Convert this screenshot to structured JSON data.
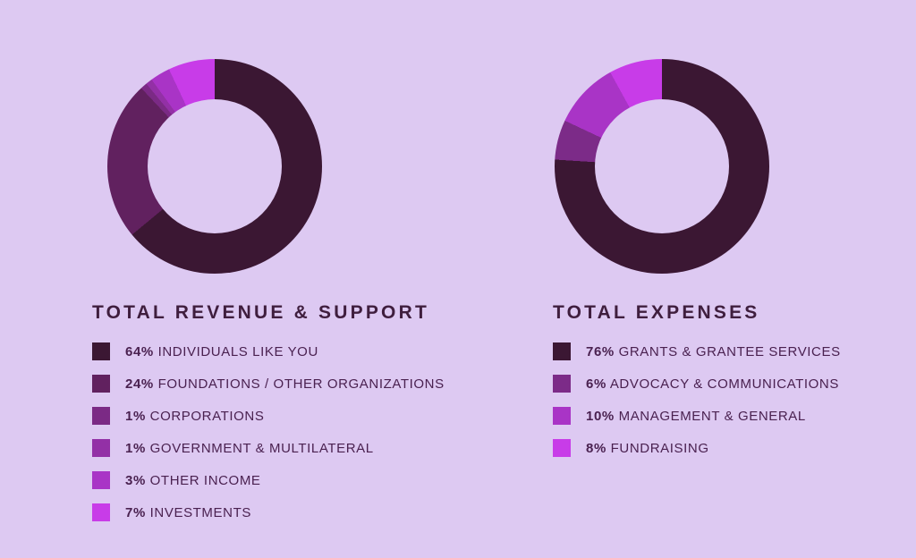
{
  "page": {
    "background": "#ddc9f2",
    "title_color": "#3f1e3e",
    "text_color": "#4a2150"
  },
  "chart_data": [
    {
      "type": "pie",
      "subtype": "donut",
      "title": "TOTAL REVENUE & SUPPORT",
      "labels": [
        "INDIVIDUALS LIKE YOU",
        "FOUNDATIONS / OTHER ORGANIZATIONS",
        "CORPORATIONS",
        "GOVERNMENT & MULTILATERAL",
        "OTHER INCOME",
        "INVESTMENTS"
      ],
      "values": [
        64,
        24,
        1,
        1,
        3,
        7
      ],
      "unit": "%",
      "colors": [
        "#3b1733",
        "#61215f",
        "#7b2a85",
        "#9330a6",
        "#a934c6",
        "#c83ce8"
      ],
      "start_angle_deg": 0,
      "direction": "clockwise",
      "legend_position": "below-left"
    },
    {
      "type": "pie",
      "subtype": "donut",
      "title": "TOTAL EXPENSES",
      "labels": [
        "GRANTS & GRANTEE SERVICES",
        "ADVOCACY & COMMUNICATIONS",
        "MANAGEMENT & GENERAL",
        "FUNDRAISING"
      ],
      "values": [
        76,
        6,
        10,
        8
      ],
      "unit": "%",
      "colors": [
        "#3b1733",
        "#7c2b88",
        "#a934c6",
        "#c83ce8"
      ],
      "start_angle_deg": 0,
      "direction": "clockwise",
      "legend_position": "below-left"
    }
  ]
}
